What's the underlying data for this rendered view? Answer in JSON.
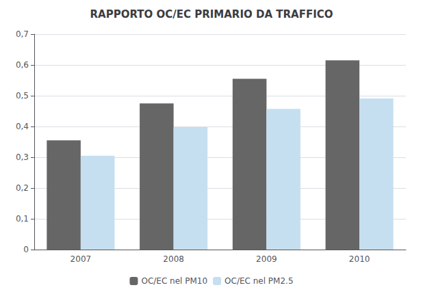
{
  "chart_data": {
    "type": "bar",
    "title": "RAPPORTO OC/EC PRIMARIO DA TRAFFICO",
    "categories": [
      "2007",
      "2008",
      "2009",
      "2010"
    ],
    "series": [
      {
        "name": "OC/EC nel PM10",
        "color": "#666666",
        "values": [
          0.355,
          0.475,
          0.555,
          0.615
        ]
      },
      {
        "name": "OC/EC nel PM2.5",
        "color": "#c5dff0",
        "values": [
          0.305,
          0.398,
          0.457,
          0.491
        ]
      }
    ],
    "ylim": [
      0,
      0.7
    ],
    "yticks": [
      0,
      {
        "value": 0.1,
        "label": "0,1"
      },
      {
        "value": 0.2,
        "label": "0,2"
      },
      {
        "value": 0.3,
        "label": "0,3"
      },
      {
        "value": 0.4,
        "label": "0,4"
      },
      {
        "value": 0.5,
        "label": "0,5"
      },
      {
        "value": 0.6,
        "label": "0,6"
      },
      {
        "value": 0.7,
        "label": "0,7"
      }
    ],
    "grid": true,
    "legend": "bottom"
  }
}
